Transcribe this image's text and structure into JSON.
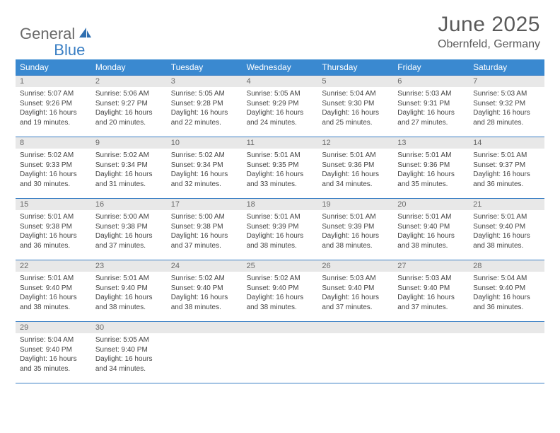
{
  "logo": {
    "part1": "General",
    "part2": "Blue"
  },
  "title": "June 2025",
  "location": "Obernfeld, Germany",
  "colors": {
    "header_bg": "#3a89d0",
    "header_text": "#ffffff",
    "daynum_bg": "#e8e8e8",
    "border": "#3a7fc4",
    "logo_gray": "#6a6a6a",
    "logo_blue": "#3a7fc4",
    "body_text": "#444444"
  },
  "day_headers": [
    "Sunday",
    "Monday",
    "Tuesday",
    "Wednesday",
    "Thursday",
    "Friday",
    "Saturday"
  ],
  "weeks": [
    [
      {
        "num": "1",
        "sunrise": "Sunrise: 5:07 AM",
        "sunset": "Sunset: 9:26 PM",
        "d1": "Daylight: 16 hours",
        "d2": "and 19 minutes."
      },
      {
        "num": "2",
        "sunrise": "Sunrise: 5:06 AM",
        "sunset": "Sunset: 9:27 PM",
        "d1": "Daylight: 16 hours",
        "d2": "and 20 minutes."
      },
      {
        "num": "3",
        "sunrise": "Sunrise: 5:05 AM",
        "sunset": "Sunset: 9:28 PM",
        "d1": "Daylight: 16 hours",
        "d2": "and 22 minutes."
      },
      {
        "num": "4",
        "sunrise": "Sunrise: 5:05 AM",
        "sunset": "Sunset: 9:29 PM",
        "d1": "Daylight: 16 hours",
        "d2": "and 24 minutes."
      },
      {
        "num": "5",
        "sunrise": "Sunrise: 5:04 AM",
        "sunset": "Sunset: 9:30 PM",
        "d1": "Daylight: 16 hours",
        "d2": "and 25 minutes."
      },
      {
        "num": "6",
        "sunrise": "Sunrise: 5:03 AM",
        "sunset": "Sunset: 9:31 PM",
        "d1": "Daylight: 16 hours",
        "d2": "and 27 minutes."
      },
      {
        "num": "7",
        "sunrise": "Sunrise: 5:03 AM",
        "sunset": "Sunset: 9:32 PM",
        "d1": "Daylight: 16 hours",
        "d2": "and 28 minutes."
      }
    ],
    [
      {
        "num": "8",
        "sunrise": "Sunrise: 5:02 AM",
        "sunset": "Sunset: 9:33 PM",
        "d1": "Daylight: 16 hours",
        "d2": "and 30 minutes."
      },
      {
        "num": "9",
        "sunrise": "Sunrise: 5:02 AM",
        "sunset": "Sunset: 9:34 PM",
        "d1": "Daylight: 16 hours",
        "d2": "and 31 minutes."
      },
      {
        "num": "10",
        "sunrise": "Sunrise: 5:02 AM",
        "sunset": "Sunset: 9:34 PM",
        "d1": "Daylight: 16 hours",
        "d2": "and 32 minutes."
      },
      {
        "num": "11",
        "sunrise": "Sunrise: 5:01 AM",
        "sunset": "Sunset: 9:35 PM",
        "d1": "Daylight: 16 hours",
        "d2": "and 33 minutes."
      },
      {
        "num": "12",
        "sunrise": "Sunrise: 5:01 AM",
        "sunset": "Sunset: 9:36 PM",
        "d1": "Daylight: 16 hours",
        "d2": "and 34 minutes."
      },
      {
        "num": "13",
        "sunrise": "Sunrise: 5:01 AM",
        "sunset": "Sunset: 9:36 PM",
        "d1": "Daylight: 16 hours",
        "d2": "and 35 minutes."
      },
      {
        "num": "14",
        "sunrise": "Sunrise: 5:01 AM",
        "sunset": "Sunset: 9:37 PM",
        "d1": "Daylight: 16 hours",
        "d2": "and 36 minutes."
      }
    ],
    [
      {
        "num": "15",
        "sunrise": "Sunrise: 5:01 AM",
        "sunset": "Sunset: 9:38 PM",
        "d1": "Daylight: 16 hours",
        "d2": "and 36 minutes."
      },
      {
        "num": "16",
        "sunrise": "Sunrise: 5:00 AM",
        "sunset": "Sunset: 9:38 PM",
        "d1": "Daylight: 16 hours",
        "d2": "and 37 minutes."
      },
      {
        "num": "17",
        "sunrise": "Sunrise: 5:00 AM",
        "sunset": "Sunset: 9:38 PM",
        "d1": "Daylight: 16 hours",
        "d2": "and 37 minutes."
      },
      {
        "num": "18",
        "sunrise": "Sunrise: 5:01 AM",
        "sunset": "Sunset: 9:39 PM",
        "d1": "Daylight: 16 hours",
        "d2": "and 38 minutes."
      },
      {
        "num": "19",
        "sunrise": "Sunrise: 5:01 AM",
        "sunset": "Sunset: 9:39 PM",
        "d1": "Daylight: 16 hours",
        "d2": "and 38 minutes."
      },
      {
        "num": "20",
        "sunrise": "Sunrise: 5:01 AM",
        "sunset": "Sunset: 9:40 PM",
        "d1": "Daylight: 16 hours",
        "d2": "and 38 minutes."
      },
      {
        "num": "21",
        "sunrise": "Sunrise: 5:01 AM",
        "sunset": "Sunset: 9:40 PM",
        "d1": "Daylight: 16 hours",
        "d2": "and 38 minutes."
      }
    ],
    [
      {
        "num": "22",
        "sunrise": "Sunrise: 5:01 AM",
        "sunset": "Sunset: 9:40 PM",
        "d1": "Daylight: 16 hours",
        "d2": "and 38 minutes."
      },
      {
        "num": "23",
        "sunrise": "Sunrise: 5:01 AM",
        "sunset": "Sunset: 9:40 PM",
        "d1": "Daylight: 16 hours",
        "d2": "and 38 minutes."
      },
      {
        "num": "24",
        "sunrise": "Sunrise: 5:02 AM",
        "sunset": "Sunset: 9:40 PM",
        "d1": "Daylight: 16 hours",
        "d2": "and 38 minutes."
      },
      {
        "num": "25",
        "sunrise": "Sunrise: 5:02 AM",
        "sunset": "Sunset: 9:40 PM",
        "d1": "Daylight: 16 hours",
        "d2": "and 38 minutes."
      },
      {
        "num": "26",
        "sunrise": "Sunrise: 5:03 AM",
        "sunset": "Sunset: 9:40 PM",
        "d1": "Daylight: 16 hours",
        "d2": "and 37 minutes."
      },
      {
        "num": "27",
        "sunrise": "Sunrise: 5:03 AM",
        "sunset": "Sunset: 9:40 PM",
        "d1": "Daylight: 16 hours",
        "d2": "and 37 minutes."
      },
      {
        "num": "28",
        "sunrise": "Sunrise: 5:04 AM",
        "sunset": "Sunset: 9:40 PM",
        "d1": "Daylight: 16 hours",
        "d2": "and 36 minutes."
      }
    ],
    [
      {
        "num": "29",
        "sunrise": "Sunrise: 5:04 AM",
        "sunset": "Sunset: 9:40 PM",
        "d1": "Daylight: 16 hours",
        "d2": "and 35 minutes."
      },
      {
        "num": "30",
        "sunrise": "Sunrise: 5:05 AM",
        "sunset": "Sunset: 9:40 PM",
        "d1": "Daylight: 16 hours",
        "d2": "and 34 minutes."
      },
      {
        "empty": true
      },
      {
        "empty": true
      },
      {
        "empty": true
      },
      {
        "empty": true
      },
      {
        "empty": true
      }
    ]
  ]
}
